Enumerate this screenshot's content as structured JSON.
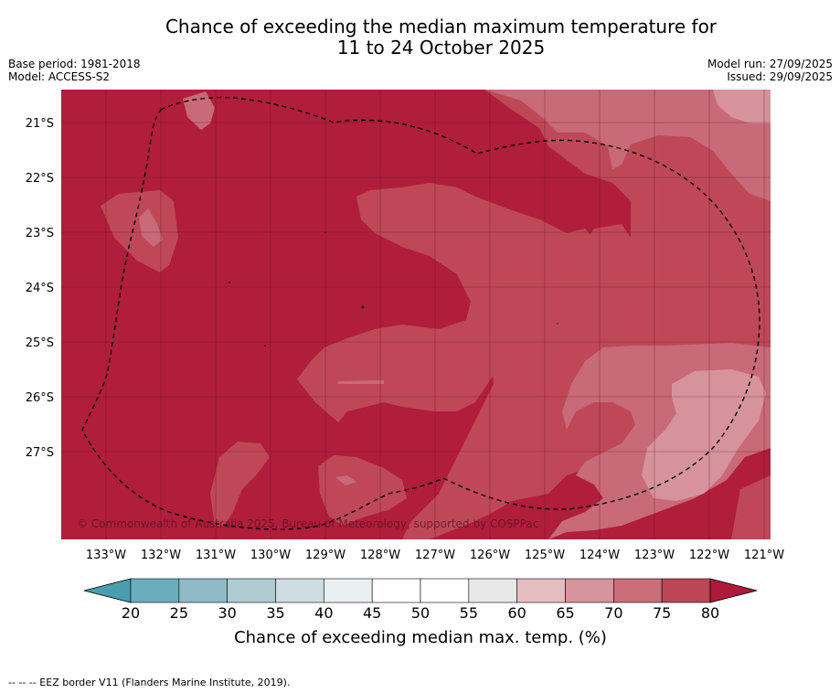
{
  "title": {
    "line1": "Chance of exceeding the median maximum temperature for",
    "line2": "11 to 24 October 2025"
  },
  "meta_left": {
    "base_period": "Base period: 1981-2018",
    "model": "Model: ACCESS-S2"
  },
  "meta_right": {
    "model_run": "Model run: 27/09/2025",
    "issued": "Issued: 29/09/2025"
  },
  "map": {
    "lat_labels": [
      "21°S",
      "22°S",
      "23°S",
      "24°S",
      "25°S",
      "26°S",
      "27°S"
    ],
    "lon_labels": [
      "133°W",
      "132°W",
      "131°W",
      "130°W",
      "129°W",
      "128°W",
      "127°W",
      "126°W",
      "125°W",
      "124°W",
      "123°W",
      "122°W",
      "121°W"
    ],
    "copyright": "© Commonwealth of Australia 2025, Bureau of Meteorology, supported by COSPPac"
  },
  "colorbar": {
    "ticks": [
      "20",
      "25",
      "30",
      "35",
      "40",
      "45",
      "50",
      "55",
      "60",
      "65",
      "70",
      "75",
      "80"
    ],
    "colors": [
      "#6aaebd",
      "#8fbac5",
      "#aecbd1",
      "#ccdce0",
      "#eaf0f2",
      "#ffffff",
      "#ffffff",
      "#e8e8e8",
      "#e5bcc2",
      "#d6949c",
      "#c96d79",
      "#bc4656"
    ],
    "under_color": "#4a9daf",
    "over_color": "#ad1a3a",
    "label": "Chance of exceeding median max. temp. (%)"
  },
  "footer": "-- -- -- EEZ border V11 (Flanders Marine Institute, 2019)."
}
